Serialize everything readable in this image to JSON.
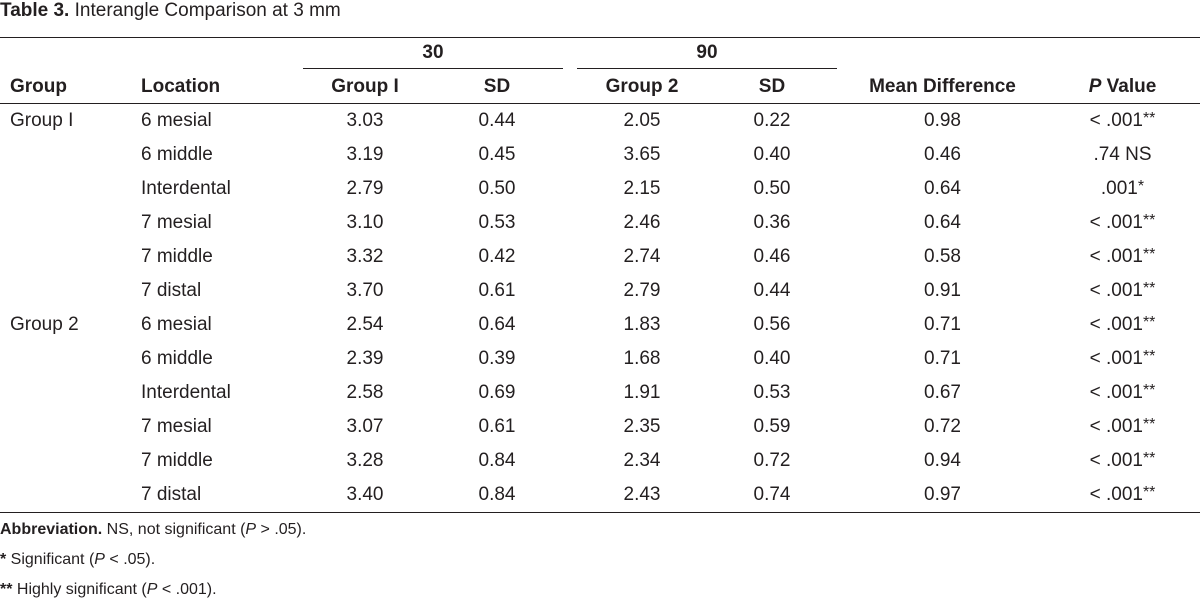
{
  "caption": {
    "label": "Table 3.",
    "text": " Interangle Comparison at 3 mm"
  },
  "header": {
    "group_30": "30",
    "group_90": "90",
    "col_group": "Group",
    "col_location": "Location",
    "col_group1": "Group I",
    "col_sd1": "SD",
    "col_group2": "Group 2",
    "col_sd2": "SD",
    "col_mean_diff": "Mean Difference",
    "col_p_italic": "P",
    "col_p_rest": " Value"
  },
  "rows": [
    {
      "group": "Group I",
      "location": "6 mesial",
      "g1": "3.03",
      "sd1": "0.44",
      "g2": "2.05",
      "sd2": "0.22",
      "md": "0.98",
      "p": "< .001",
      "p_mark": "**"
    },
    {
      "group": "",
      "location": "6 middle",
      "g1": "3.19",
      "sd1": "0.45",
      "g2": "3.65",
      "sd2": "0.40",
      "md": "0.46",
      "p": ".74 NS",
      "p_mark": ""
    },
    {
      "group": "",
      "location": "Interdental",
      "g1": "2.79",
      "sd1": "0.50",
      "g2": "2.15",
      "sd2": "0.50",
      "md": "0.64",
      "p": ".001",
      "p_mark": "*"
    },
    {
      "group": "",
      "location": "7 mesial",
      "g1": "3.10",
      "sd1": "0.53",
      "g2": "2.46",
      "sd2": "0.36",
      "md": "0.64",
      "p": "< .001",
      "p_mark": "**"
    },
    {
      "group": "",
      "location": "7 middle",
      "g1": "3.32",
      "sd1": "0.42",
      "g2": "2.74",
      "sd2": "0.46",
      "md": "0.58",
      "p": "< .001",
      "p_mark": "**"
    },
    {
      "group": "",
      "location": "7 distal",
      "g1": "3.70",
      "sd1": "0.61",
      "g2": "2.79",
      "sd2": "0.44",
      "md": "0.91",
      "p": "< .001",
      "p_mark": "**"
    },
    {
      "group": "Group 2",
      "location": "6 mesial",
      "g1": "2.54",
      "sd1": "0.64",
      "g2": "1.83",
      "sd2": "0.56",
      "md": "0.71",
      "p": "< .001",
      "p_mark": "**"
    },
    {
      "group": "",
      "location": "6 middle",
      "g1": "2.39",
      "sd1": "0.39",
      "g2": "1.68",
      "sd2": "0.40",
      "md": "0.71",
      "p": "< .001",
      "p_mark": "**"
    },
    {
      "group": "",
      "location": "Interdental",
      "g1": "2.58",
      "sd1": "0.69",
      "g2": "1.91",
      "sd2": "0.53",
      "md": "0.67",
      "p": "< .001",
      "p_mark": "**"
    },
    {
      "group": "",
      "location": "7 mesial",
      "g1": "3.07",
      "sd1": "0.61",
      "g2": "2.35",
      "sd2": "0.59",
      "md": "0.72",
      "p": "< .001",
      "p_mark": "**"
    },
    {
      "group": "",
      "location": "7 middle",
      "g1": "3.28",
      "sd1": "0.84",
      "g2": "2.34",
      "sd2": "0.72",
      "md": "0.94",
      "p": "< .001",
      "p_mark": "**"
    },
    {
      "group": "",
      "location": "7 distal",
      "g1": "3.40",
      "sd1": "0.84",
      "g2": "2.43",
      "sd2": "0.74",
      "md": "0.97",
      "p": "< .001",
      "p_mark": "**"
    }
  ],
  "footnotes": {
    "abbrev_label": "Abbreviation.",
    "abbrev_text_1": " NS, not significant (",
    "abbrev_p": "P",
    "abbrev_text_2": " > .05).",
    "sig_mark": "*",
    "sig_text_1": " Significant (",
    "sig_p": "P",
    "sig_text_2": " < .05).",
    "hsig_mark": "**",
    "hsig_text_1": " Highly significant (",
    "hsig_p": "P",
    "hsig_text_2": " < .001)."
  }
}
